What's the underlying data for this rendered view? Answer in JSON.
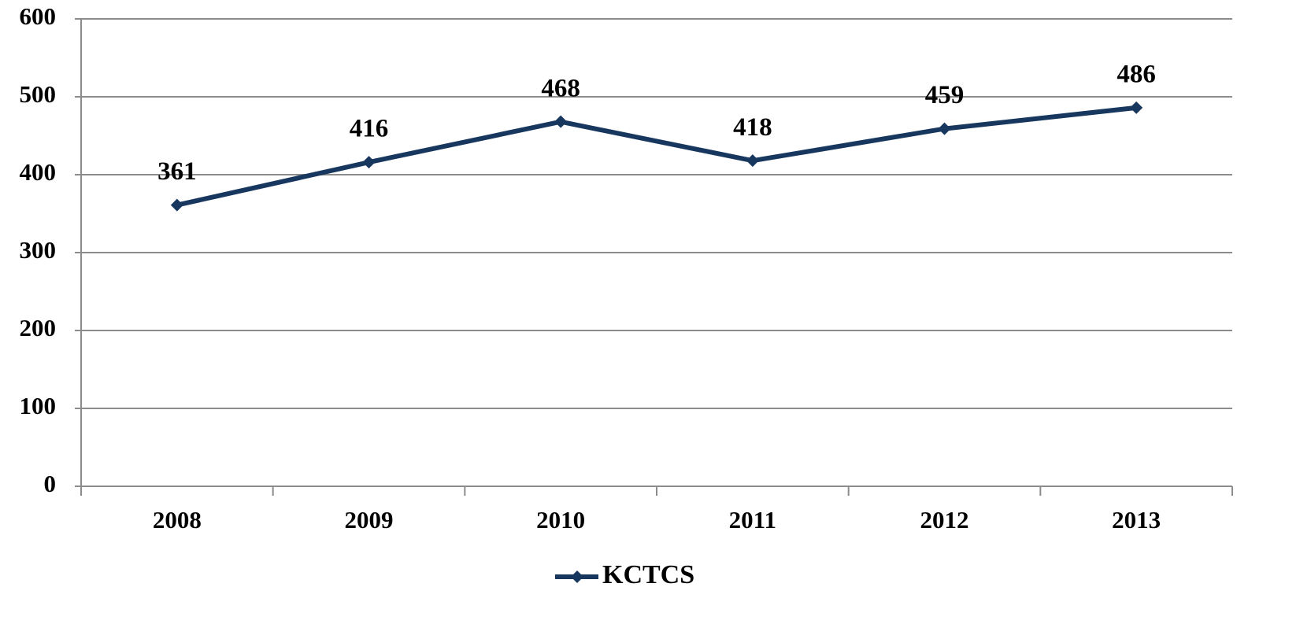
{
  "chart_data": {
    "type": "line",
    "categories": [
      "2008",
      "2009",
      "2010",
      "2011",
      "2012",
      "2013"
    ],
    "series": [
      {
        "name": "KCTCS",
        "color": "#17375e",
        "values": [
          361,
          416,
          468,
          418,
          459,
          486
        ]
      }
    ],
    "ylim": [
      0,
      600
    ],
    "yticks": [
      0,
      100,
      200,
      300,
      400,
      500,
      600
    ],
    "grid": true,
    "legend": "bottom"
  }
}
